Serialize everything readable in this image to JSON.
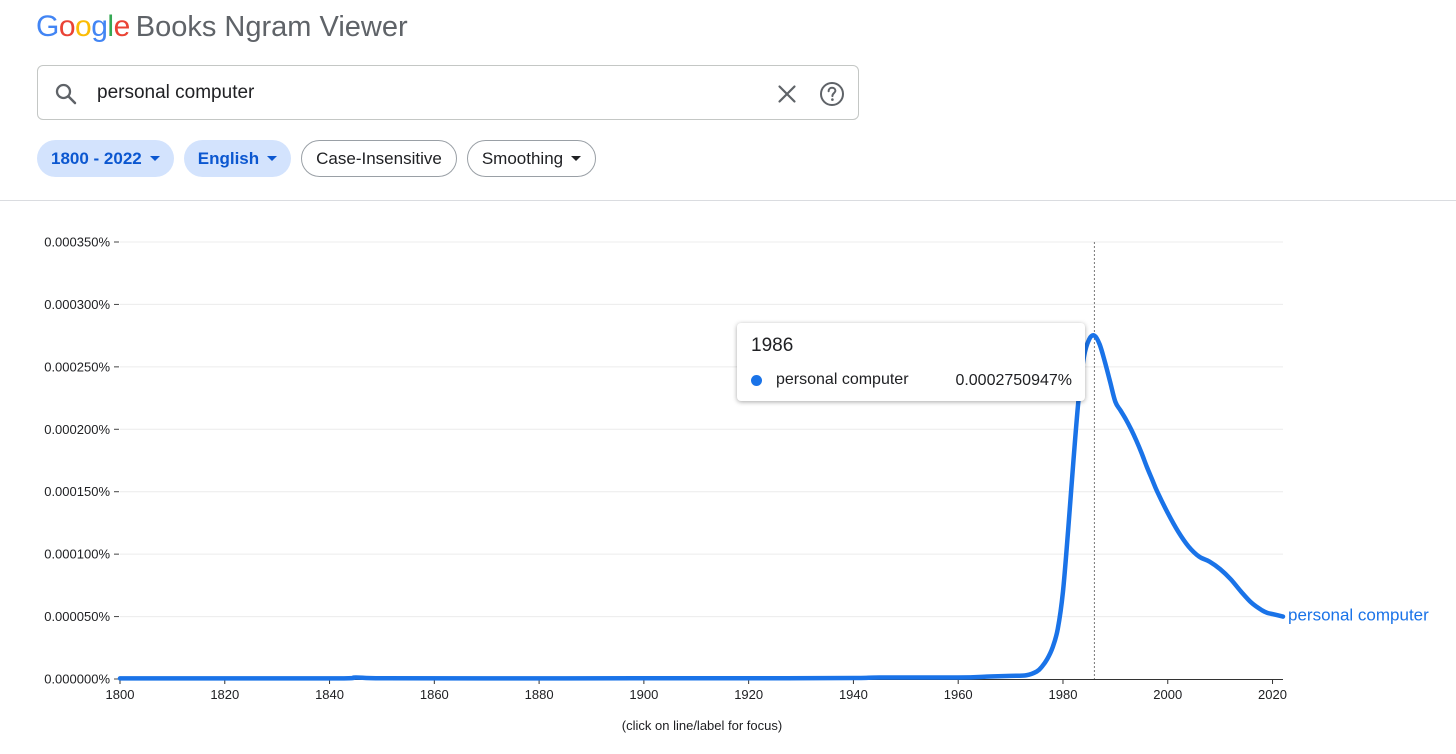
{
  "header": {
    "logo_letters": [
      {
        "ch": "G",
        "color": "#4285F4"
      },
      {
        "ch": "o",
        "color": "#EA4335"
      },
      {
        "ch": "o",
        "color": "#FBBC05"
      },
      {
        "ch": "g",
        "color": "#4285F4"
      },
      {
        "ch": "l",
        "color": "#34A853"
      },
      {
        "ch": "e",
        "color": "#EA4335"
      }
    ],
    "product": "Books Ngram Viewer"
  },
  "search": {
    "value": "personal computer",
    "placeholder": ""
  },
  "filters": {
    "year_range": "1800 - 2022",
    "language": "English",
    "case": "Case-Insensitive",
    "smoothing": "Smoothing"
  },
  "tooltip": {
    "year": "1986",
    "series_name": "personal computer",
    "value": "0.0002750947%"
  },
  "hint": "(click on line/label for focus)",
  "chart_data": {
    "type": "line",
    "xlim": [
      1800,
      2022
    ],
    "ylim": [
      0,
      0.00035
    ],
    "x_ticks": [
      "1800",
      "1820",
      "1840",
      "1860",
      "1880",
      "1900",
      "1920",
      "1940",
      "1960",
      "1980",
      "2000",
      "2020"
    ],
    "y_ticks": [
      "0.000000%",
      "0.000050%",
      "0.000100%",
      "0.000150%",
      "0.000200%",
      "0.000250%",
      "0.000300%",
      "0.000350%"
    ],
    "grid": true,
    "focus_year": 1986,
    "series": [
      {
        "name": "personal computer",
        "color": "#1a73e8",
        "x": [
          1800,
          1840,
          1845,
          1850,
          1870,
          1900,
          1920,
          1940,
          1945,
          1960,
          1966,
          1970,
          1973,
          1975,
          1976,
          1977,
          1978,
          1979,
          1980,
          1981,
          1982,
          1983,
          1984,
          1985,
          1986,
          1987,
          1988,
          1989,
          1990,
          1991,
          1992,
          1993,
          1994,
          1995,
          1996,
          1997,
          1998,
          2000,
          2002,
          2004,
          2006,
          2008,
          2010,
          2012,
          2014,
          2016,
          2018,
          2019,
          2020,
          2022
        ],
        "y": [
          5e-07,
          5e-07,
          1.2e-06,
          6e-07,
          5e-07,
          6e-07,
          6e-07,
          8e-07,
          1.2e-06,
          1.2e-06,
          2e-06,
          2.5e-06,
          3e-06,
          6e-06,
          1e-05,
          1.6e-05,
          2.5e-05,
          4e-05,
          7e-05,
          0.00012,
          0.000175,
          0.000225,
          0.000258,
          0.000272,
          0.000275,
          0.000268,
          0.000254,
          0.000238,
          0.000222,
          0.000215,
          0.000208,
          0.0002,
          0.000191,
          0.000181,
          0.00017,
          0.00016,
          0.00015,
          0.000133,
          0.000118,
          0.000106,
          9.8e-05,
          9.4e-05,
          8.8e-05,
          8e-05,
          7e-05,
          6.1e-05,
          5.5e-05,
          5.3e-05,
          5.2e-05,
          5e-05
        ]
      }
    ]
  }
}
